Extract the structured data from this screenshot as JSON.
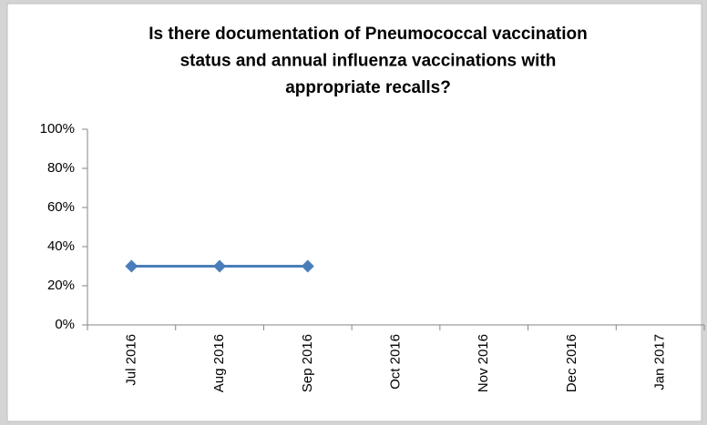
{
  "chart_data": {
    "type": "line",
    "title": [
      "Is there documentation of Pneumococcal  vaccination",
      "status and  annual influenza vaccinations with",
      "appropriate recalls?"
    ],
    "categories": [
      "Jul 2016",
      "Aug 2016",
      "Sep 2016",
      "Oct 2016",
      "Nov 2016",
      "Dec 2016",
      "Jan 2017"
    ],
    "series": [
      {
        "color": "#4a7ebb",
        "values": [
          30,
          30,
          30,
          null,
          null,
          null,
          null
        ]
      }
    ],
    "ylim": [
      0,
      100
    ],
    "yticks": [
      {
        "value": 0,
        "label": "0%"
      },
      {
        "value": 20,
        "label": "20%"
      },
      {
        "value": 40,
        "label": "40%"
      },
      {
        "value": 60,
        "label": "60%"
      },
      {
        "value": 80,
        "label": "80%"
      },
      {
        "value": 100,
        "label": "100%"
      }
    ],
    "grid": false
  }
}
